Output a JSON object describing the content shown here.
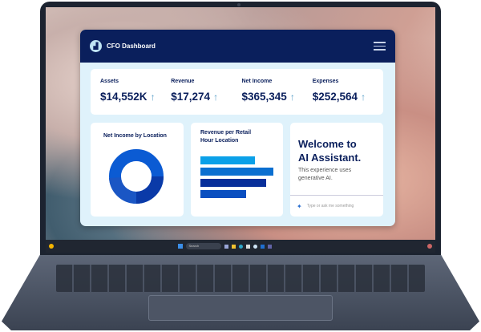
{
  "dashboard": {
    "title": "CFO Dashboard",
    "kpis": [
      {
        "label": "Assets",
        "value": "$14,552K",
        "trend": "up"
      },
      {
        "label": "Revenue",
        "value": "$17,274",
        "trend": "up"
      },
      {
        "label": "Net Income",
        "value": "$365,345",
        "trend": "up"
      },
      {
        "label": "Expenses",
        "value": "$252,564",
        "trend": "up"
      }
    ],
    "donut_card": {
      "title": "Net Income by Location"
    },
    "bar_card": {
      "title_line1": "Revenue per Retail",
      "title_line2": "Hour Location"
    },
    "assistant": {
      "heading_line1": "Welcome to",
      "heading_line2": "AI Assistant.",
      "subtitle": "This experience uses generative AI.",
      "input_placeholder": "Type or ask me something"
    }
  },
  "taskbar": {
    "search_label": "Search"
  },
  "colors": {
    "header": "#0a1f5c",
    "accent": "#0b5bd3",
    "panel": "#dff2fb"
  }
}
